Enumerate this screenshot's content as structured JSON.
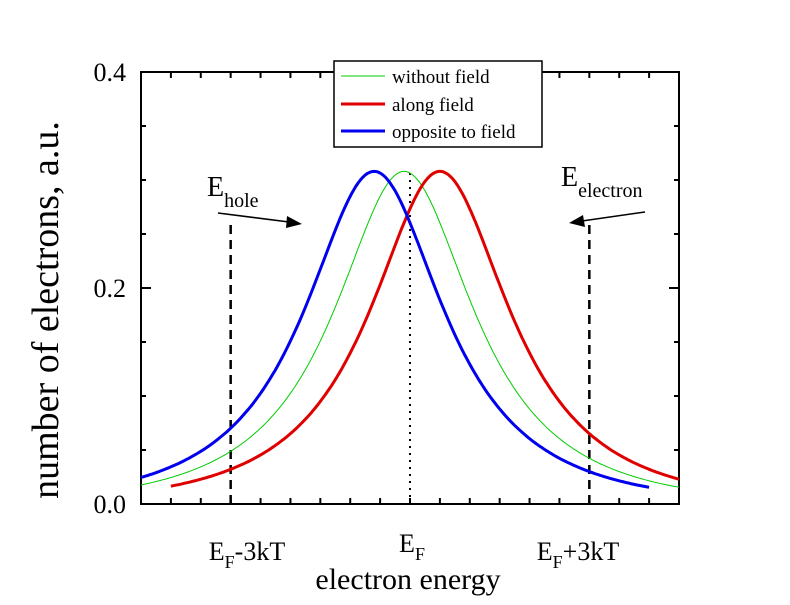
{
  "chart_data": {
    "type": "line",
    "xlabel": "electron energy",
    "ylabel": "number of electrons, a.u.",
    "ylim": [
      0,
      0.4
    ],
    "yticks": [
      "0.0",
      "0.2",
      "0.4"
    ],
    "xlim": [
      -4.5,
      4.5
    ],
    "xticks": [
      {
        "x": -3,
        "main": "E",
        "sub": "F",
        "rest": "-3kT"
      },
      {
        "x": 0,
        "main": "E",
        "sub": "F",
        "rest": ""
      },
      {
        "x": 3,
        "main": "E",
        "sub": "F",
        "rest": "+3kT"
      }
    ],
    "legend_position": "top",
    "series": [
      {
        "name": "without field",
        "color": "#00cc00",
        "width": 1,
        "center": -0.1,
        "amplitude": 0.308,
        "x": [
          -4.5,
          -4.0,
          -3.5,
          -3.0,
          -2.5,
          -2.0,
          -1.5,
          -1.0,
          -0.5,
          -0.1,
          0.5,
          1.0,
          1.5,
          2.0,
          2.5,
          3.0,
          3.5,
          4.0,
          4.5
        ]
      },
      {
        "name": "along field",
        "color": "#e00000",
        "width": 3,
        "center": 0.5,
        "amplitude": 0.308,
        "x": [
          -4.0,
          -3.5,
          -3.0,
          -2.5,
          -2.0,
          -1.5,
          -1.0,
          -0.5,
          0.0,
          0.5,
          1.0,
          1.5,
          2.0,
          2.5,
          3.0,
          3.5,
          4.0,
          4.5
        ]
      },
      {
        "name": "opposite to field",
        "color": "#0000ee",
        "width": 3,
        "center": -0.6,
        "amplitude": 0.308,
        "x": [
          -4.5,
          -4.0,
          -3.5,
          -3.0,
          -2.5,
          -2.0,
          -1.5,
          -1.0,
          -0.6,
          0.0,
          0.5,
          1.0,
          1.5,
          2.0,
          2.5,
          3.0,
          3.5,
          4.0
        ]
      }
    ],
    "reference_lines": [
      {
        "x": -3,
        "style": "dashed",
        "ymax": 0.26
      },
      {
        "x": 0,
        "style": "dotted",
        "ymax": 0.31
      },
      {
        "x": 3,
        "style": "dashed",
        "ymax": 0.26
      }
    ],
    "annotations": [
      {
        "id": "hole",
        "main": "E",
        "sub": "hole"
      },
      {
        "id": "electron",
        "main": "E",
        "sub": "electron"
      }
    ]
  }
}
